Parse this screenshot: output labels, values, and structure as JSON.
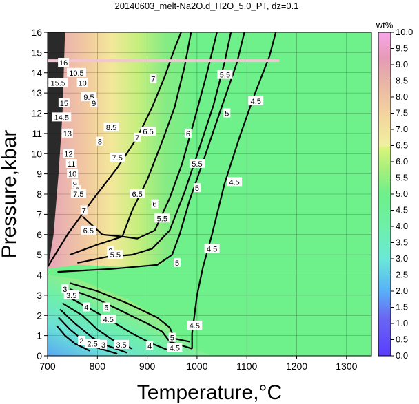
{
  "chart_data": {
    "type": "heatmap",
    "title": "20140603_melt-Na2O.d_H2O_5.0_PT, dz=0.1",
    "xlabel": "Temperature,°C",
    "ylabel": "Pressure,kbar",
    "xlim": [
      700,
      1350
    ],
    "ylim": [
      0,
      16
    ],
    "x_ticks": [
      "700",
      "800",
      "900",
      "1000",
      "1100",
      "1200",
      "1300"
    ],
    "y_ticks": [
      "0",
      "1",
      "2",
      "3",
      "4",
      "5",
      "6",
      "7",
      "8",
      "9",
      "10",
      "11",
      "12",
      "13",
      "14",
      "15",
      "16"
    ],
    "grid": true,
    "colorbar": {
      "label": "wt%",
      "range": [
        0.0,
        10.0
      ],
      "ticks": [
        "0.0",
        "0.5",
        "1.0",
        "1.5",
        "2.0",
        "2.5",
        "3.0",
        "3.5",
        "4.0",
        "4.5",
        "5.0",
        "5.5",
        "6.0",
        "6.5",
        "7.0",
        "7.5",
        "8.0",
        "8.5",
        "9.0",
        "9.5",
        "10.0"
      ]
    },
    "plateau_value": 5.0,
    "plateau_color": "#6ef08a",
    "contours": [
      {
        "level": "7",
        "bold": true,
        "points": [
          [
            700,
            4.4
          ],
          [
            740,
            6.0
          ],
          [
            790,
            7.7
          ],
          [
            840,
            9.3
          ],
          [
            880,
            10.8
          ],
          [
            910,
            12.3
          ],
          [
            935,
            13.8
          ],
          [
            955,
            15.2
          ],
          [
            968,
            16.0
          ]
        ]
      },
      {
        "level": "6.5",
        "bold": true,
        "points": [
          [
            770,
            6.9
          ],
          [
            810,
            6.0
          ],
          [
            850,
            5.9
          ],
          [
            870,
            7.2
          ],
          [
            900,
            8.7
          ],
          [
            930,
            10.6
          ],
          [
            955,
            12.3
          ],
          [
            975,
            14.3
          ],
          [
            988,
            16.0
          ]
        ]
      },
      {
        "level": "6",
        "bold": true,
        "points": [
          [
            745,
            5.0
          ],
          [
            800,
            5.5
          ],
          [
            850,
            5.9
          ],
          [
            880,
            5.8
          ],
          [
            915,
            6.2
          ],
          [
            945,
            7.8
          ],
          [
            970,
            9.5
          ],
          [
            995,
            11.7
          ],
          [
            1018,
            13.8
          ],
          [
            1040,
            16.0
          ]
        ]
      },
      {
        "level": "5.5",
        "bold": true,
        "points": [
          [
            760,
            4.6
          ],
          [
            820,
            4.9
          ],
          [
            870,
            5.0
          ],
          [
            910,
            5.3
          ],
          [
            945,
            6.2
          ],
          [
            975,
            8.1
          ],
          [
            1005,
            10.3
          ],
          [
            1033,
            12.4
          ],
          [
            1055,
            14.5
          ],
          [
            1068,
            16.0
          ]
        ]
      },
      {
        "level": "5",
        "bold": true,
        "points": [
          [
            720,
            4.15
          ],
          [
            830,
            4.3
          ],
          [
            920,
            4.5
          ],
          [
            950,
            5.0
          ],
          [
            965,
            6.0
          ],
          [
            985,
            7.7
          ],
          [
            1012,
            9.6
          ],
          [
            1045,
            12.0
          ],
          [
            1080,
            14.5
          ],
          [
            1095,
            16.0
          ]
        ]
      },
      {
        "level": "4.5",
        "bold": true,
        "points": [
          [
            990,
            0.35
          ],
          [
            990,
            1.1
          ],
          [
            1000,
            3.0
          ],
          [
            1012,
            4.4
          ],
          [
            1030,
            6.0
          ],
          [
            1055,
            8.5
          ],
          [
            1085,
            10.8
          ],
          [
            1115,
            12.9
          ],
          [
            1145,
            14.8
          ],
          [
            1158,
            16.0
          ]
        ]
      },
      {
        "level": "5",
        "bold": true,
        "points": [
          [
            745,
            3.6
          ],
          [
            800,
            3.2
          ],
          [
            860,
            2.6
          ],
          [
            920,
            1.9
          ],
          [
            945,
            1.4
          ],
          [
            955,
            0.85
          ],
          [
            985,
            0.7
          ]
        ]
      },
      {
        "level": "4.5",
        "bold": true,
        "points": [
          [
            745,
            3.3
          ],
          [
            800,
            2.8
          ],
          [
            850,
            2.2
          ],
          [
            900,
            1.6
          ],
          [
            930,
            1.2
          ],
          [
            945,
            0.7
          ],
          [
            990,
            0.35
          ]
        ]
      },
      {
        "level": "4",
        "bold": true,
        "points": [
          [
            735,
            3.0
          ],
          [
            780,
            2.4
          ],
          [
            830,
            1.7
          ],
          [
            870,
            1.1
          ],
          [
            910,
            0.6
          ],
          [
            950,
            0.2
          ]
        ]
      },
      {
        "level": "3.5",
        "bold": true,
        "points": [
          [
            730,
            2.6
          ],
          [
            770,
            2.0
          ],
          [
            800,
            1.3
          ],
          [
            830,
            0.8
          ],
          [
            870,
            0.35
          ]
        ]
      },
      {
        "level": "3",
        "bold": true,
        "points": [
          [
            725,
            2.3
          ],
          [
            755,
            1.6
          ],
          [
            790,
            0.9
          ],
          [
            820,
            0.5
          ],
          [
            860,
            0.15
          ]
        ]
      },
      {
        "level": "2.5",
        "bold": true,
        "points": [
          [
            722,
            1.9
          ],
          [
            745,
            1.3
          ],
          [
            770,
            0.8
          ],
          [
            800,
            0.4
          ],
          [
            840,
            0.1
          ]
        ]
      },
      {
        "level": "2",
        "bold": true,
        "points": [
          [
            718,
            1.5
          ],
          [
            735,
            1.0
          ],
          [
            755,
            0.6
          ],
          [
            785,
            0.25
          ]
        ]
      }
    ],
    "contour_labels": [
      {
        "text": "7",
        "x": 912,
        "y": 13.7
      },
      {
        "text": "7",
        "x": 880,
        "y": 10.8
      },
      {
        "text": "7",
        "x": 773,
        "y": 7.2
      },
      {
        "text": "6.5",
        "x": 902,
        "y": 11.1
      },
      {
        "text": "6.5",
        "x": 880,
        "y": 8.0
      },
      {
        "text": "6.5",
        "x": 782,
        "y": 6.2
      },
      {
        "text": "6",
        "x": 982,
        "y": 11.0
      },
      {
        "text": "6",
        "x": 915,
        "y": 7.5
      },
      {
        "text": "6",
        "x": 826,
        "y": 5.2
      },
      {
        "text": "5.5",
        "x": 1056,
        "y": 13.9
      },
      {
        "text": "5.5",
        "x": 1000,
        "y": 9.5
      },
      {
        "text": "5.5",
        "x": 930,
        "y": 6.8
      },
      {
        "text": "5.5",
        "x": 836,
        "y": 5.0
      },
      {
        "text": "5",
        "x": 1060,
        "y": 12.0
      },
      {
        "text": "5",
        "x": 1000,
        "y": 8.3
      },
      {
        "text": "5",
        "x": 960,
        "y": 4.6
      },
      {
        "text": "4.5",
        "x": 1118,
        "y": 12.6
      },
      {
        "text": "4.5",
        "x": 1075,
        "y": 8.6
      },
      {
        "text": "4.5",
        "x": 1030,
        "y": 5.3
      },
      {
        "text": "4.5",
        "x": 995,
        "y": 1.5
      },
      {
        "text": "4.5",
        "x": 822,
        "y": 1.8
      },
      {
        "text": "4.5",
        "x": 955,
        "y": 0.4
      },
      {
        "text": "5",
        "x": 818,
        "y": 2.4
      },
      {
        "text": "5",
        "x": 950,
        "y": 0.9
      },
      {
        "text": "4",
        "x": 778,
        "y": 2.4
      },
      {
        "text": "4",
        "x": 905,
        "y": 0.5
      },
      {
        "text": "3.5",
        "x": 748,
        "y": 3.0
      },
      {
        "text": "3.5",
        "x": 848,
        "y": 0.55
      },
      {
        "text": "3",
        "x": 735,
        "y": 3.3
      },
      {
        "text": "3",
        "x": 812,
        "y": 0.55
      },
      {
        "text": "2.5",
        "x": 790,
        "y": 0.6
      },
      {
        "text": "2",
        "x": 768,
        "y": 0.75
      },
      {
        "text": "16",
        "x": 732,
        "y": 14.5
      },
      {
        "text": "15.5",
        "x": 721,
        "y": 13.5
      },
      {
        "text": "15",
        "x": 733,
        "y": 12.5
      },
      {
        "text": "14.5",
        "x": 728,
        "y": 11.8
      },
      {
        "text": "13",
        "x": 740,
        "y": 11.0
      },
      {
        "text": "12",
        "x": 742,
        "y": 10.0
      },
      {
        "text": "11",
        "x": 748,
        "y": 9.5
      },
      {
        "text": "10",
        "x": 750,
        "y": 9.0
      },
      {
        "text": "9",
        "x": 755,
        "y": 8.5
      },
      {
        "text": "8",
        "x": 760,
        "y": 8.2
      },
      {
        "text": "10.5",
        "x": 758,
        "y": 14.0
      },
      {
        "text": "10",
        "x": 770,
        "y": 13.5
      },
      {
        "text": "9.5",
        "x": 783,
        "y": 12.8
      },
      {
        "text": "9",
        "x": 793,
        "y": 12.5
      },
      {
        "text": "8.5",
        "x": 828,
        "y": 11.3
      },
      {
        "text": "8",
        "x": 805,
        "y": 10.6
      },
      {
        "text": "7.5",
        "x": 840,
        "y": 9.8
      },
      {
        "text": "7.5",
        "x": 762,
        "y": 8.0
      }
    ],
    "annotation_band": {
      "pressure": 14.6,
      "xmin": 700,
      "xmax": 1165,
      "color": "#f2c4d4"
    }
  }
}
